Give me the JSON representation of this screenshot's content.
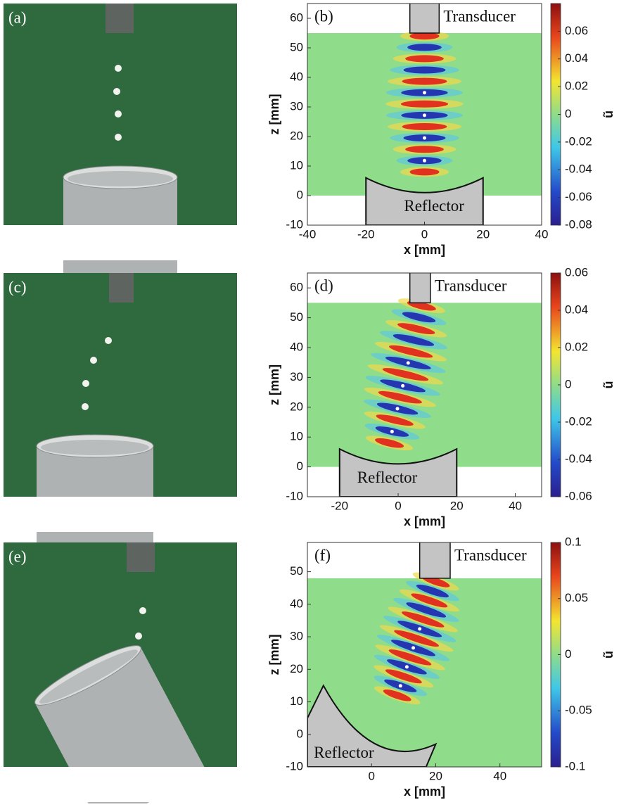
{
  "panels": [
    {
      "photo_label": "(a)",
      "plot_label": "(b)",
      "transducer": "Transducer",
      "reflector": "Reflector",
      "xlabel": "x [mm]",
      "ylabel": "z [mm]",
      "colorbar_label": "ũ",
      "xlim": [
        -40,
        40
      ],
      "xticks": [
        -40,
        -20,
        0,
        20,
        40
      ],
      "ylim": [
        -10,
        65
      ],
      "yticks": [
        -10,
        0,
        10,
        20,
        30,
        40,
        50,
        60
      ],
      "clim": [
        -0.08,
        0.08
      ],
      "cticks": [
        0.06,
        0.04,
        0.02,
        0,
        -0.02,
        -0.04,
        -0.06,
        -0.08
      ]
    },
    {
      "photo_label": "(c)",
      "plot_label": "(d)",
      "transducer": "Transducer",
      "reflector": "Reflector",
      "xlabel": "x [mm]",
      "ylabel": "z [mm]",
      "colorbar_label": "ũ",
      "xlim": [
        -31,
        49
      ],
      "xticks": [
        -20,
        0,
        20,
        40
      ],
      "ylim": [
        -10,
        65
      ],
      "yticks": [
        -10,
        0,
        10,
        20,
        30,
        40,
        50,
        60
      ],
      "clim": [
        -0.06,
        0.06
      ],
      "cticks": [
        0.06,
        0.04,
        0.02,
        0,
        -0.02,
        -0.04,
        -0.06
      ]
    },
    {
      "photo_label": "(e)",
      "plot_label": "(f)",
      "transducer": "Transducer",
      "reflector": "Reflector",
      "xlabel": "x [mm]",
      "ylabel": "z [mm]",
      "colorbar_label": "ũ",
      "xlim": [
        -20,
        53
      ],
      "xticks": [
        0,
        20,
        40
      ],
      "ylim": [
        -10,
        59
      ],
      "yticks": [
        -10,
        0,
        10,
        20,
        30,
        40,
        50
      ],
      "clim": [
        -0.1,
        0.1
      ],
      "cticks": [
        0.1,
        0.05,
        0,
        -0.05,
        -0.1
      ]
    }
  ]
}
